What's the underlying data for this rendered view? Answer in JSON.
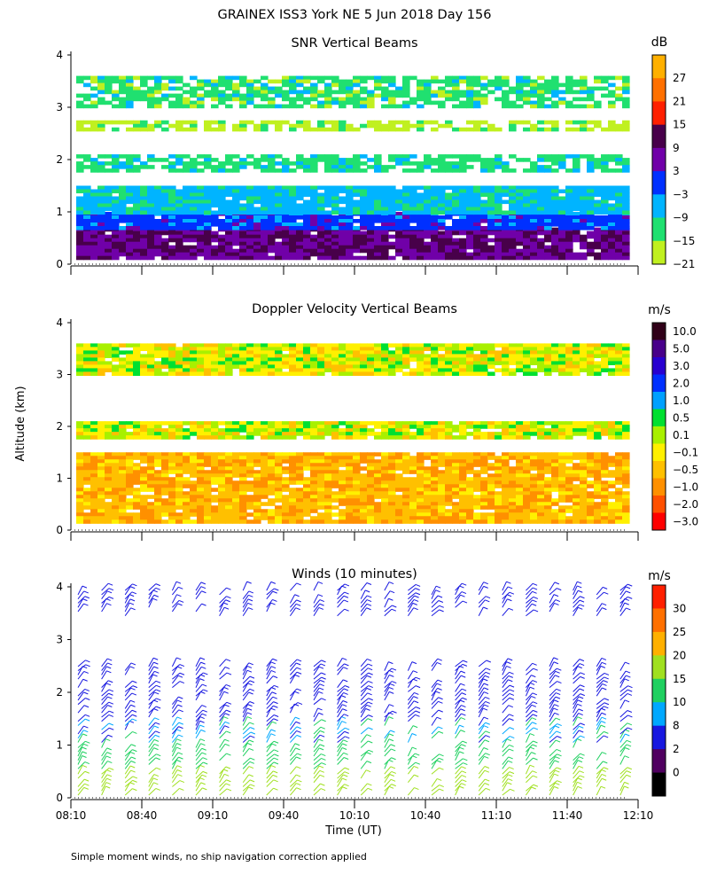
{
  "title": "GRAINEX ISS3 York NE   5 Jun 2018 Day 156",
  "ylabel": "Altitude (km)",
  "xlabel": "Time (UT)",
  "footnote": "Simple moment winds, no ship navigation correction applied",
  "x_ticks": [
    "08:10",
    "08:40",
    "09:10",
    "09:40",
    "10:10",
    "10:40",
    "11:10",
    "11:40",
    "12:10"
  ],
  "y_ticks": [
    "0",
    "1",
    "2",
    "3",
    "4"
  ],
  "chart_data": [
    {
      "type": "heatmap",
      "title": "SNR Vertical Beams",
      "unit": "dB",
      "xlim": [
        "08:10",
        "12:10"
      ],
      "ylim": [
        0,
        4
      ],
      "colorbar": {
        "labels": [
          "27",
          "21",
          "15",
          "9",
          "3",
          "−3",
          "−9",
          "−15",
          "−21"
        ],
        "colors": [
          "#ffb000",
          "#ff7000",
          "#ff2000",
          "#48004a",
          "#7000a8",
          "#0030ff",
          "#00b4ff",
          "#20e070",
          "#c0f020"
        ]
      },
      "layers": [
        {
          "altitude_km": [
            0.15,
            0.7
          ],
          "snr_db": 6
        },
        {
          "altitude_km": [
            0.7,
            1.0
          ],
          "snr_db": -3
        },
        {
          "altitude_km": [
            1.0,
            1.5
          ],
          "snr_db": -10
        },
        {
          "altitude_km": [
            1.8,
            2.1
          ],
          "snr_db": -14
        },
        {
          "altitude_km": [
            2.6,
            2.75
          ],
          "snr_db": -20
        },
        {
          "altitude_km": [
            3.0,
            3.6
          ],
          "snr_db": -15
        }
      ]
    },
    {
      "type": "heatmap",
      "title": "Doppler Velocity Vertical Beams",
      "unit": "m/s",
      "xlim": [
        "08:10",
        "12:10"
      ],
      "ylim": [
        0,
        4
      ],
      "colorbar": {
        "labels": [
          "10.0",
          "5.0",
          "3.0",
          "2.0",
          "1.0",
          "0.5",
          "0.1",
          "−0.1",
          "−0.5",
          "−1.0",
          "−2.0",
          "−3.0"
        ],
        "colors": [
          "#300018",
          "#48008a",
          "#2800d0",
          "#0030ff",
          "#00a0ff",
          "#00e030",
          "#a8f000",
          "#fff000",
          "#ffc000",
          "#ff9000",
          "#ff5000",
          "#ff0000"
        ]
      },
      "layers": [
        {
          "altitude_km": [
            0.15,
            1.5
          ],
          "velocity_ms": -0.6
        },
        {
          "altitude_km": [
            1.8,
            2.1
          ],
          "velocity_ms": 0.0
        },
        {
          "altitude_km": [
            3.0,
            3.6
          ],
          "velocity_ms": 0.0
        }
      ]
    },
    {
      "type": "wind-barbs",
      "title": "Winds (10 minutes)",
      "unit": "m/s",
      "xlim": [
        "08:10",
        "12:10"
      ],
      "ylim": [
        0,
        4
      ],
      "colorbar": {
        "labels": [
          "30",
          "25",
          "20",
          "15",
          "10",
          "8",
          "2",
          "0"
        ],
        "colors": [
          "#ff2000",
          "#ff7000",
          "#ffb000",
          "#a0e020",
          "#20d060",
          "#00a8ff",
          "#1818e0",
          "#500060",
          "#000000"
        ]
      },
      "wind_profile": [
        {
          "altitude_km": [
            0.0,
            0.5
          ],
          "speed_ms": 18
        },
        {
          "altitude_km": [
            0.5,
            1.0
          ],
          "speed_ms": 13
        },
        {
          "altitude_km": [
            1.0,
            1.4
          ],
          "speed_ms": 9
        },
        {
          "altitude_km": [
            1.4,
            2.5
          ],
          "speed_ms": 5
        },
        {
          "altitude_km": [
            3.4,
            4.0
          ],
          "speed_ms": 5
        }
      ]
    }
  ]
}
